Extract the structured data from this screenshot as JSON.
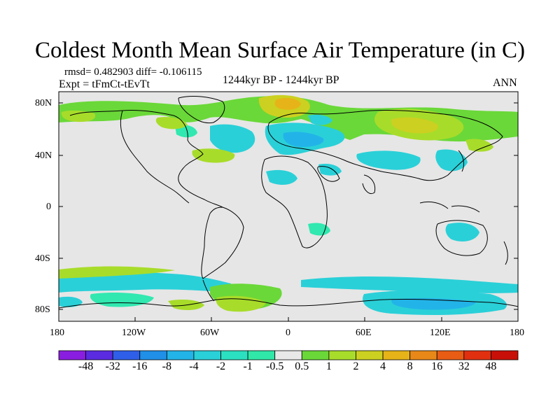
{
  "title": "Coldest Month Mean Surface Air Temperature (in C)",
  "stats": {
    "rmsd": "rmsd= 0.482903 diff= -0.106115",
    "expt": "Expt = tFmCt-tEvTt"
  },
  "period": "1244kyr BP - 1244kyr BP",
  "season": "ANN",
  "y_axis": {
    "ticks": [
      "80N",
      "40N",
      "0",
      "40S",
      "80S"
    ]
  },
  "x_axis": {
    "ticks": [
      "180",
      "120W",
      "60W",
      "0",
      "60E",
      "120E",
      "180"
    ]
  },
  "colorbar": {
    "labels": [
      "-48",
      "-32",
      "-16",
      "-8",
      "-4",
      "-2",
      "-1",
      "-0.5",
      "0.5",
      "1",
      "2",
      "4",
      "8",
      "16",
      "32",
      "48"
    ],
    "colors": [
      "#8a1ee0",
      "#5a2be0",
      "#2f5fe8",
      "#1f8fe8",
      "#22b4e8",
      "#2ad0d8",
      "#2be0c0",
      "#30e8a8",
      "#e8e8e8",
      "#6ad838",
      "#a8dc2a",
      "#ccd020",
      "#e6b418",
      "#e88818",
      "#e85c14",
      "#e03010",
      "#c81008"
    ]
  },
  "map_colors": {
    "background": "#e6e6e6",
    "blue_light": "#2ad0d8",
    "blue_mid": "#22b4e8",
    "cyan": "#30e8b0",
    "green": "#6ad838",
    "yellow_green": "#a8dc2a",
    "yellow": "#ccd020",
    "orange": "#e6b418"
  }
}
